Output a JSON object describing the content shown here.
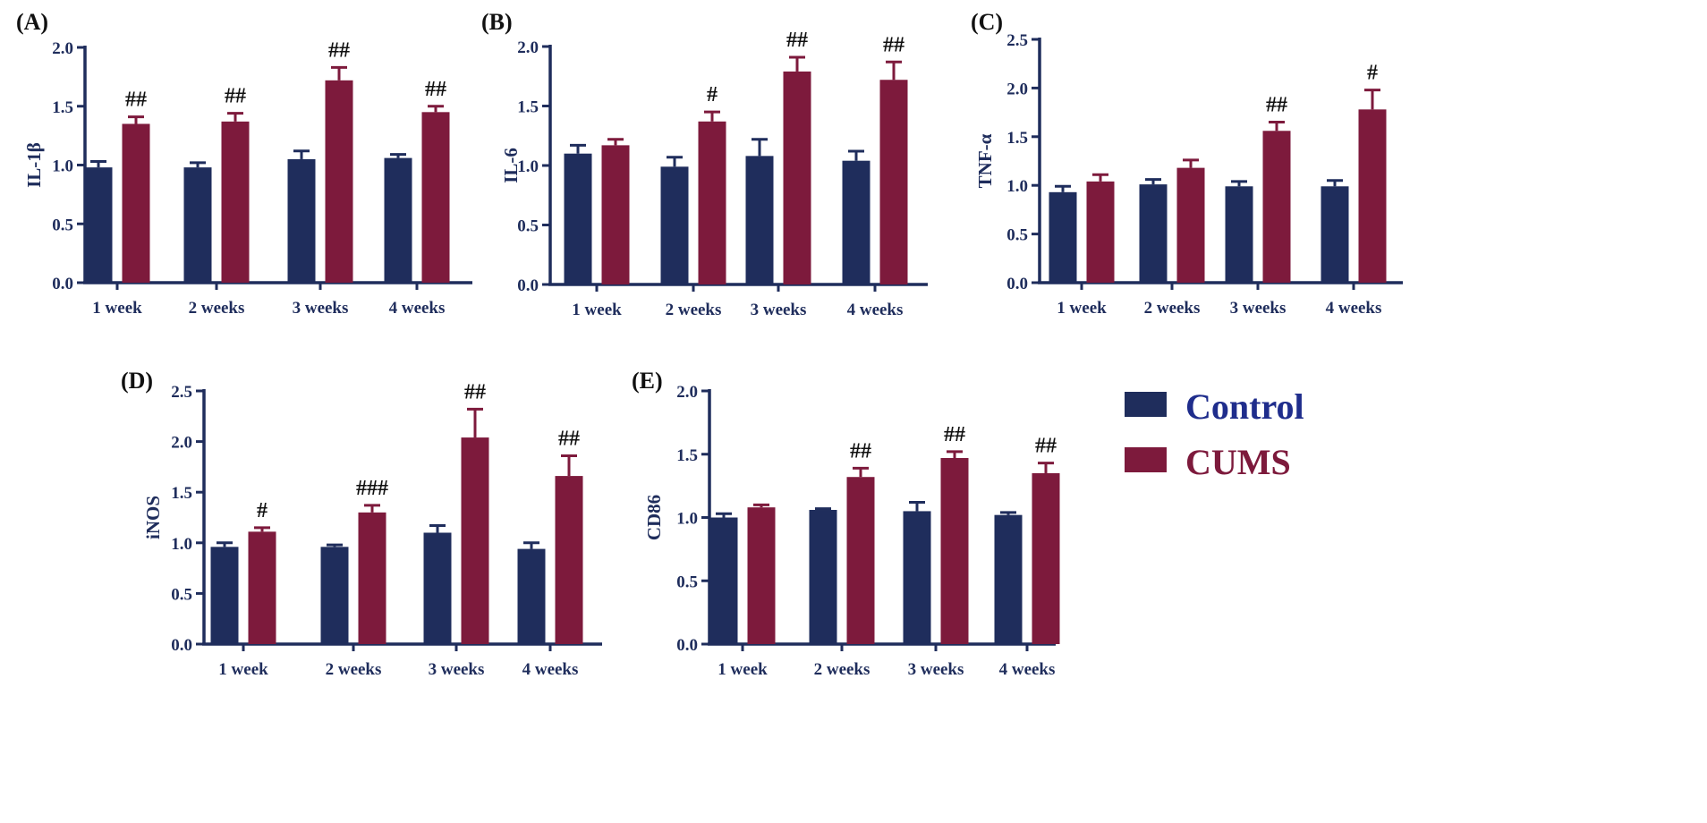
{
  "colors": {
    "control": "#1f2d5c",
    "cums": "#7d1a3c",
    "axis": "#1f2d5c",
    "control_text": "#1f2d8c",
    "cums_text": "#7d1a3c"
  },
  "legend": {
    "items": [
      {
        "label": "Control",
        "series": "control"
      },
      {
        "label": "CUMS",
        "series": "cums"
      }
    ]
  },
  "chart_data": [
    {
      "panel": "(A)",
      "type": "bar",
      "ylabel": "IL-1β",
      "ylim": [
        0,
        2.0
      ],
      "yticks": [
        "0.0",
        "0.5",
        "1.0",
        "1.5",
        "2.0"
      ],
      "categories": [
        "1 week",
        "2 weeks",
        "3 weeks",
        "4 weeks"
      ],
      "series": [
        {
          "name": "Control",
          "values": [
            0.98,
            0.98,
            1.05,
            1.06
          ],
          "errors": [
            0.05,
            0.04,
            0.07,
            0.03
          ]
        },
        {
          "name": "CUMS",
          "values": [
            1.35,
            1.37,
            1.72,
            1.45
          ],
          "errors": [
            0.06,
            0.07,
            0.11,
            0.05
          ]
        }
      ],
      "annotations": [
        "##",
        "##",
        "##",
        "##"
      ]
    },
    {
      "panel": "(B)",
      "type": "bar",
      "ylabel": "IL-6",
      "ylim": [
        0,
        2.0
      ],
      "yticks": [
        "0.0",
        "0.5",
        "1.0",
        "1.5",
        "2.0"
      ],
      "categories": [
        "1 week",
        "2 weeks",
        "3 weeks",
        "4 weeks"
      ],
      "series": [
        {
          "name": "Control",
          "values": [
            1.1,
            0.99,
            1.08,
            1.04
          ],
          "errors": [
            0.07,
            0.08,
            0.14,
            0.08
          ]
        },
        {
          "name": "CUMS",
          "values": [
            1.17,
            1.37,
            1.79,
            1.72
          ],
          "errors": [
            0.05,
            0.08,
            0.12,
            0.15
          ]
        }
      ],
      "annotations": [
        "",
        "#",
        "##",
        "##"
      ]
    },
    {
      "panel": "(C)",
      "type": "bar",
      "ylabel": "TNF-α",
      "ylim": [
        0,
        2.5
      ],
      "yticks": [
        "0.0",
        "0.5",
        "1.0",
        "1.5",
        "2.0",
        "2.5"
      ],
      "categories": [
        "1 week",
        "2 weeks",
        "3 weeks",
        "4 weeks"
      ],
      "series": [
        {
          "name": "Control",
          "values": [
            0.93,
            1.01,
            0.99,
            0.99
          ],
          "errors": [
            0.06,
            0.05,
            0.05,
            0.06
          ]
        },
        {
          "name": "CUMS",
          "values": [
            1.04,
            1.18,
            1.56,
            1.78
          ],
          "errors": [
            0.07,
            0.08,
            0.09,
            0.2
          ]
        }
      ],
      "annotations": [
        "",
        "",
        "##",
        "#"
      ]
    },
    {
      "panel": "(D)",
      "type": "bar",
      "ylabel": "iNOS",
      "ylim": [
        0,
        2.5
      ],
      "yticks": [
        "0.0",
        "0.5",
        "1.0",
        "1.5",
        "2.0",
        "2.5"
      ],
      "categories": [
        "1 week",
        "2 weeks",
        "3 weeks",
        "4 weeks"
      ],
      "series": [
        {
          "name": "Control",
          "values": [
            0.96,
            0.96,
            1.1,
            0.94
          ],
          "errors": [
            0.04,
            0.02,
            0.07,
            0.06
          ]
        },
        {
          "name": "CUMS",
          "values": [
            1.11,
            1.3,
            2.04,
            1.66
          ],
          "errors": [
            0.04,
            0.07,
            0.28,
            0.2
          ]
        }
      ],
      "annotations": [
        "#",
        "###",
        "##",
        "##"
      ]
    },
    {
      "panel": "(E)",
      "type": "bar",
      "ylabel": "CD86",
      "ylim": [
        0,
        2.0
      ],
      "yticks": [
        "0.0",
        "0.5",
        "1.0",
        "1.5",
        "2.0"
      ],
      "categories": [
        "1 week",
        "2 weeks",
        "3 weeks",
        "4 weeks"
      ],
      "series": [
        {
          "name": "Control",
          "values": [
            1.0,
            1.06,
            1.05,
            1.02
          ],
          "errors": [
            0.03,
            0.01,
            0.07,
            0.02
          ]
        },
        {
          "name": "CUMS",
          "values": [
            1.08,
            1.32,
            1.47,
            1.35
          ],
          "errors": [
            0.02,
            0.07,
            0.05,
            0.08
          ]
        }
      ],
      "annotations": [
        "",
        "##",
        "##",
        "##"
      ]
    }
  ]
}
